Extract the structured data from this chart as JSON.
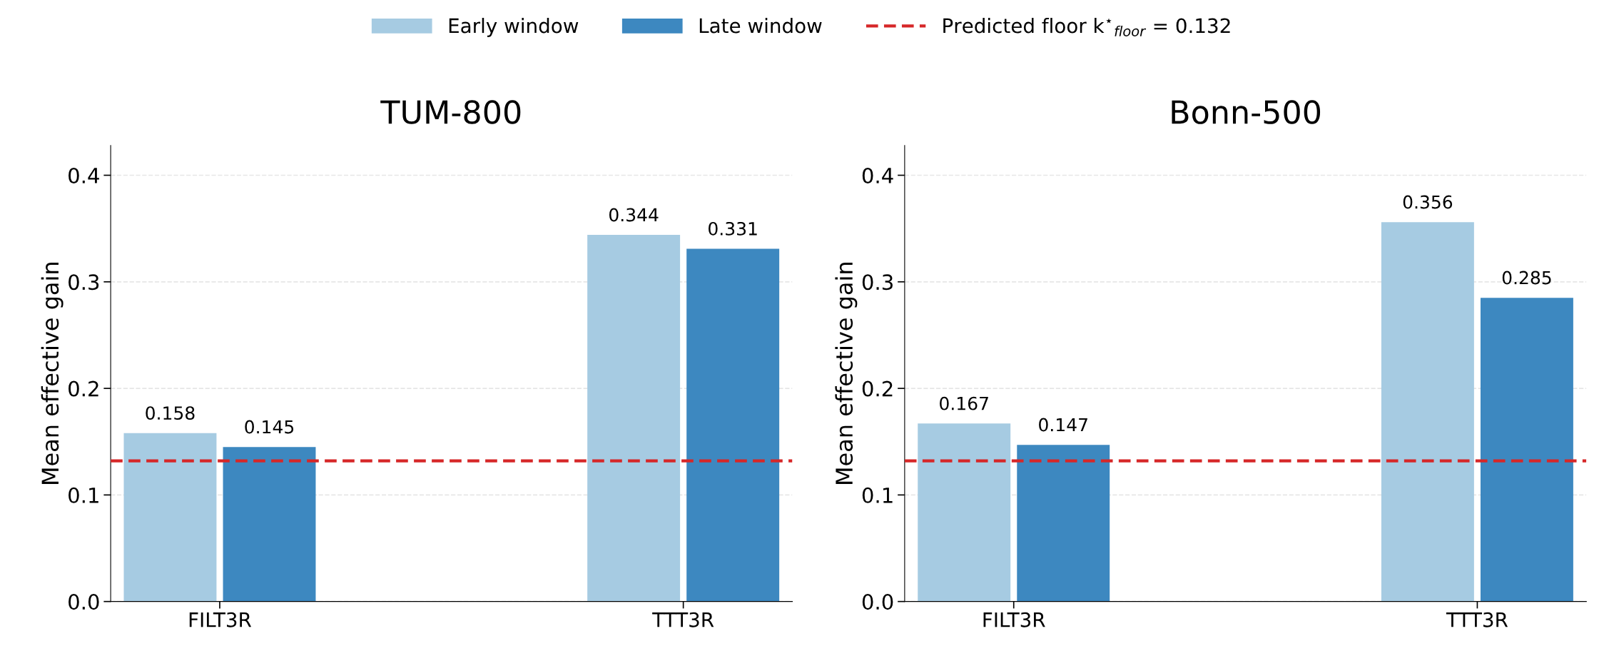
{
  "chart_data": [
    {
      "type": "bar",
      "title": "TUM-800",
      "ylabel": "Mean effective gain",
      "categories": [
        "FILT3R",
        "TTT3R"
      ],
      "series": [
        {
          "name": "Early window",
          "color": "#a6cbe2",
          "values": [
            0.158,
            0.344
          ]
        },
        {
          "name": "Late window",
          "color": "#3d88c0",
          "values": [
            0.145,
            0.331
          ]
        }
      ],
      "ylim": [
        0,
        0.428
      ],
      "yticks": [
        {
          "value": 0,
          "label": "0.0"
        },
        {
          "value": 0.1,
          "label": "0.1"
        },
        {
          "value": 0.2,
          "label": "0.2"
        },
        {
          "value": 0.3,
          "label": "0.3"
        },
        {
          "value": 0.4,
          "label": "0.4"
        }
      ],
      "grid": "y",
      "data_labels": true,
      "legend": "top",
      "ref_lines": [
        {
          "axis": "y",
          "value": 0.132,
          "label": "Predicted floor k$^{⋆}$$_{floor}$ = 0.132",
          "color": "#d62728",
          "line_style": "dashed"
        }
      ]
    },
    {
      "type": "bar",
      "title": "Bonn-500",
      "ylabel": "Mean effective gain",
      "categories": [
        "FILT3R",
        "TTT3R"
      ],
      "series": [
        {
          "color": "#a6cbe2",
          "values": [
            0.167,
            0.356
          ]
        },
        {
          "color": "#3d88c0",
          "values": [
            0.147,
            0.285
          ]
        }
      ],
      "ylim": [
        0,
        0.428
      ],
      "yticks": [
        {
          "value": 0,
          "label": "0.0"
        },
        {
          "value": 0.1,
          "label": "0.1"
        },
        {
          "value": 0.2,
          "label": "0.2"
        },
        {
          "value": 0.3,
          "label": "0.3"
        },
        {
          "value": 0.4,
          "label": "0.4"
        }
      ],
      "grid": "y",
      "data_labels": true,
      "ref_lines": [
        {
          "axis": "y",
          "value": 0.132,
          "color": "#d62728",
          "line_style": "dashed"
        }
      ]
    }
  ]
}
